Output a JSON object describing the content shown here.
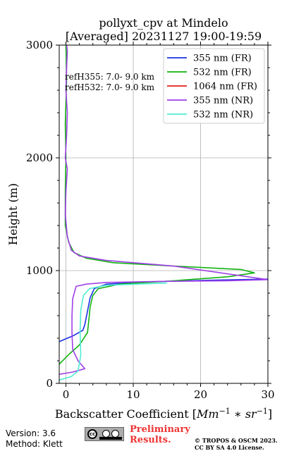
{
  "chart_data": {
    "type": "line",
    "title_line1": "pollyxt_cpv at Mindelo",
    "title_line2": "[Averaged] 20231127 19:00-19:59",
    "xlabel_text": "Backscatter Coefficient [",
    "xlabel_math": "Mm",
    "xlabel_sup1": "−1",
    "xlabel_mid": " ∗ ",
    "xlabel_math2": "sr",
    "xlabel_sup2": "−1",
    "xlabel_end": "]",
    "ylabel": "Height (m)",
    "xlim": [
      -1,
      30
    ],
    "ylim": [
      0,
      3000
    ],
    "xticks": [
      0,
      10,
      20,
      30
    ],
    "yticks": [
      0,
      1000,
      2000,
      3000
    ],
    "grid": true,
    "legend_position": "top-right",
    "annotations": [
      "refH355:  7.0- 9.0 km",
      "refH532:  7.0- 9.0 km"
    ],
    "series": [
      {
        "name": "355 nm (FR)",
        "color": "#1c31e3",
        "x": [
          -1.0,
          1.0,
          2.5,
          2.8,
          3.2,
          3.6,
          4.2,
          6.0,
          12.0,
          22.0,
          30.0
        ],
        "y": [
          370,
          420,
          470,
          520,
          640,
          760,
          840,
          880,
          900,
          915,
          925
        ]
      },
      {
        "name": "532 nm (FR)",
        "color": "#12b312",
        "x": [
          -1.0,
          0.5,
          2.0,
          3.2,
          3.4,
          3.6,
          4.0,
          4.8,
          8.0,
          16.0,
          24.0,
          28.0,
          26.0,
          16.0,
          7.0,
          3.0,
          1.2,
          0.4,
          -0.1,
          -0.1,
          0.0,
          -0.1,
          0.1,
          0.0
        ],
        "y": [
          170,
          260,
          340,
          450,
          560,
          680,
          780,
          840,
          880,
          910,
          945,
          980,
          1010,
          1040,
          1070,
          1110,
          1160,
          1250,
          1400,
          1700,
          2000,
          2300,
          2700,
          3000
        ]
      },
      {
        "name": "1064 nm (FR)",
        "color": "#e0201a",
        "x": [],
        "y": []
      },
      {
        "name": "355 nm (NR)",
        "color": "#a040e8",
        "x": [
          -1.0,
          1.0,
          2.8,
          1.8,
          1.0,
          0.9,
          0.9,
          1.0,
          1.5,
          3.0,
          6.0,
          15.0,
          24.0,
          30.0,
          16.0,
          6.0,
          2.0,
          0.8,
          0.2,
          -0.1,
          0.0,
          0.2,
          -0.1,
          0.1,
          0.2,
          0.0,
          0.1,
          0.2,
          0.1
        ],
        "y": [
          80,
          100,
          130,
          200,
          300,
          450,
          600,
          750,
          860,
          880,
          895,
          905,
          910,
          920,
          1040,
          1090,
          1130,
          1180,
          1300,
          1500,
          1700,
          1900,
          2000,
          2200,
          2400,
          2600,
          2800,
          2950,
          3000
        ]
      },
      {
        "name": "532 nm (NR)",
        "color": "#4fecd4",
        "x": [
          -1.0,
          0.8,
          1.8,
          2.2,
          2.1,
          2.2,
          2.6,
          3.5,
          6.0,
          15.0
        ],
        "y": [
          30,
          60,
          110,
          250,
          450,
          650,
          780,
          840,
          870,
          890
        ]
      }
    ]
  },
  "footer": {
    "version": "Version: 3.6",
    "method": "Method: Klett",
    "prelim_line1": "Preliminary",
    "prelim_line2": "Results.",
    "copyright_line1": "© TROPOS & OSCM 2023.",
    "copyright_line2": "CC BY SA 4.0 License.",
    "license_badge": "cc"
  }
}
